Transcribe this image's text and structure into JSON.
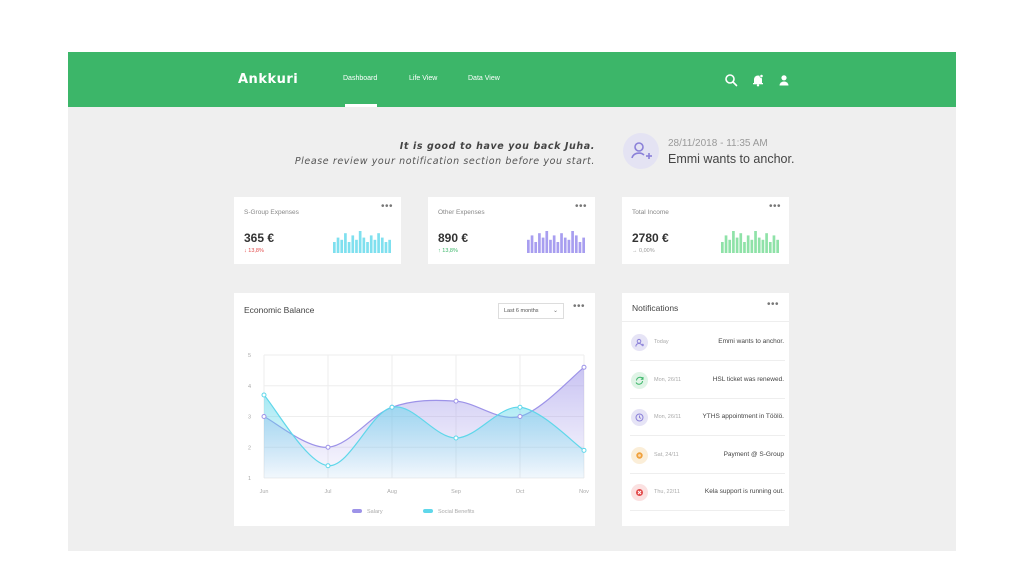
{
  "app": {
    "logo": "Ankkuri",
    "nav": [
      {
        "label": "Dashboard",
        "active": true
      },
      {
        "label": "Life View",
        "active": false
      },
      {
        "label": "Data View",
        "active": false
      }
    ],
    "icons": [
      "search-icon",
      "bell-icon",
      "user-icon"
    ]
  },
  "greeting": {
    "line1": "It is good to have you back Juha.",
    "line2": "Please review your notification section before you start.",
    "date": "28/11/2018 - 11:35 AM",
    "message": "Emmi wants to anchor."
  },
  "cards": [
    {
      "title": "S-Group Expenses",
      "value": "365 €",
      "change": "13,8%",
      "direction": "down",
      "color": "#7fe0ef",
      "change_color": "#e24a4a",
      "bars": [
        0.5,
        0.7,
        0.6,
        0.9,
        0.5,
        0.8,
        0.6,
        1.0,
        0.7,
        0.5,
        0.8,
        0.6,
        0.9,
        0.7,
        0.5,
        0.6
      ]
    },
    {
      "title": "Other Expenses",
      "value": "890 €",
      "change": "13,8%",
      "direction": "up",
      "color": "#a89ef0",
      "change_color": "#3cb669",
      "bars": [
        0.6,
        0.8,
        0.5,
        0.9,
        0.7,
        1.0,
        0.6,
        0.8,
        0.5,
        0.9,
        0.7,
        0.6,
        1.0,
        0.8,
        0.5,
        0.7
      ]
    },
    {
      "title": "Total Income",
      "value": "2780 €",
      "change": "0,00%",
      "direction": "flat",
      "color": "#8fe2a8",
      "change_color": "#999999",
      "bars": [
        0.5,
        0.8,
        0.6,
        1.0,
        0.7,
        0.9,
        0.5,
        0.8,
        0.6,
        1.0,
        0.7,
        0.6,
        0.9,
        0.5,
        0.8,
        0.6
      ]
    }
  ],
  "balance": {
    "title": "Economic Balance",
    "range_select": "Last 6 months"
  },
  "chart_data": {
    "type": "area",
    "x": [
      "Jun",
      "Jul",
      "Aug",
      "Sep",
      "Oct",
      "Nov"
    ],
    "ylim": [
      1,
      5
    ],
    "yticks": [
      "1",
      "2",
      "3",
      "4",
      "5"
    ],
    "series": [
      {
        "name": "Salary",
        "values": [
          3.0,
          2.0,
          3.3,
          3.5,
          3.0,
          4.6
        ],
        "color": "#9d93e8"
      },
      {
        "name": "Social Benefits",
        "values": [
          3.7,
          1.4,
          3.3,
          2.3,
          3.3,
          1.9
        ],
        "color": "#5fd7ea"
      }
    ],
    "grid": true,
    "legend": "bottom"
  },
  "notifications": {
    "title": "Notifications",
    "items": [
      {
        "date": "Today",
        "text": "Emmi wants to anchor.",
        "icon": "add-user-icon",
        "bg": "#e6e4f6",
        "fg": "#8a80d8"
      },
      {
        "date": "Mon, 26/11",
        "text": "HSL ticket was renewed.",
        "icon": "refresh-icon",
        "bg": "#dff4e6",
        "fg": "#3cb669"
      },
      {
        "date": "Mon, 26/11",
        "text": "YTHS appointment in Töölö.",
        "icon": "clock-icon",
        "bg": "#e6e4f6",
        "fg": "#8a80d8"
      },
      {
        "date": "Sat, 24/11",
        "text": "Payment @ S-Group",
        "icon": "coin-icon",
        "bg": "#fbeed8",
        "fg": "#f0a13c"
      },
      {
        "date": "Thu, 22/11",
        "text": "Kela support is running out.",
        "icon": "alert-icon",
        "bg": "#fbe1e1",
        "fg": "#e24a4a"
      }
    ]
  }
}
